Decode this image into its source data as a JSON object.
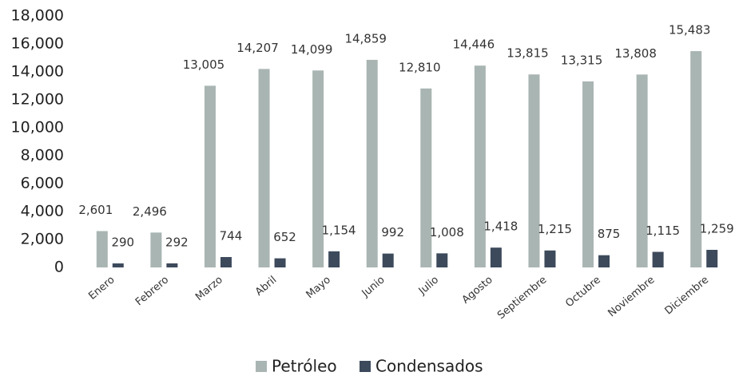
{
  "chart_data": {
    "type": "bar",
    "categories": [
      "Enero",
      "Febrero",
      "Marzo",
      "Abril",
      "Mayo",
      "Junio",
      "Julio",
      "Agosto",
      "Septiembre",
      "Octubre",
      "Noviembre",
      "Diciembre"
    ],
    "series": [
      {
        "name": "Petróleo",
        "color": "#a9b5b3",
        "values": [
          2601,
          2496,
          13005,
          14207,
          14099,
          14859,
          12810,
          14446,
          13815,
          13315,
          13808,
          15483
        ],
        "value_labels": [
          "2,601",
          "2,496",
          "13,005",
          "14,207",
          "14,099",
          "14,859",
          "12,810",
          "14,446",
          "13,815",
          "13,315",
          "13,808",
          "15,483"
        ]
      },
      {
        "name": "Condensados",
        "color": "#3d4a5c",
        "values": [
          290,
          292,
          744,
          652,
          1154,
          992,
          1008,
          1418,
          1215,
          875,
          1115,
          1259
        ],
        "value_labels": [
          "290",
          "292",
          "744",
          "652",
          "1,154",
          "992",
          "1,008",
          "1,418",
          "1,215",
          "875",
          "1,115",
          "1,259"
        ]
      }
    ],
    "ylim": [
      0,
      18000
    ],
    "yticks": [
      0,
      {
        "value": 2000,
        "label": "2,000"
      },
      {
        "value": 4000,
        "label": "4,000"
      },
      {
        "value": 6000,
        "label": "6,000"
      },
      {
        "value": 8000,
        "label": "8,000"
      },
      {
        "value": 10000,
        "label": "10,000"
      },
      {
        "value": 12000,
        "label": "12,000"
      },
      {
        "value": 14000,
        "label": "14,000"
      },
      {
        "value": 16000,
        "label": "16,000"
      },
      {
        "value": 18000,
        "label": "18,000"
      }
    ],
    "grid": false,
    "legend": "bottom"
  }
}
